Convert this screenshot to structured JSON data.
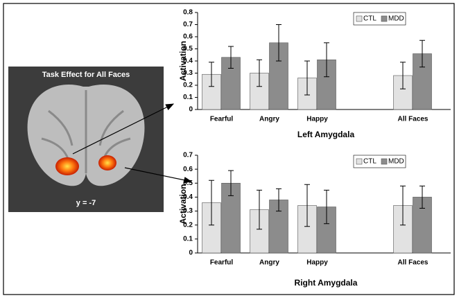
{
  "brain_panel": {
    "title": "Task Effect for All Faces",
    "label": "y =  -7"
  },
  "chart_data": [
    {
      "type": "bar",
      "xlabel": "Left Amygdala",
      "ylabel": "Activation",
      "categories": [
        "Fearful",
        "Angry",
        "Happy",
        null,
        "All Faces"
      ],
      "series": [
        {
          "name": "CTL",
          "color": "#e2e2e2",
          "values": [
            0.29,
            0.3,
            0.26,
            null,
            0.28
          ],
          "errors": [
            0.1,
            0.11,
            0.14,
            null,
            0.11
          ]
        },
        {
          "name": "MDD",
          "color": "#8c8c8c",
          "values": [
            0.43,
            0.55,
            0.41,
            null,
            0.46
          ],
          "errors": [
            0.09,
            0.15,
            0.14,
            null,
            0.11
          ]
        }
      ],
      "ylim": [
        0,
        0.8
      ],
      "yticks": [
        0,
        0.1,
        0.2,
        0.3,
        0.4,
        0.5,
        0.6,
        0.7,
        0.8
      ],
      "legend": "upper right"
    },
    {
      "type": "bar",
      "xlabel": "Right Amygdala",
      "ylabel": "Activation",
      "categories": [
        "Fearful",
        "Angry",
        "Happy",
        null,
        "All Faces"
      ],
      "series": [
        {
          "name": "CTL",
          "color": "#e2e2e2",
          "values": [
            0.36,
            0.31,
            0.34,
            null,
            0.34
          ],
          "errors": [
            0.16,
            0.14,
            0.15,
            null,
            0.14
          ]
        },
        {
          "name": "MDD",
          "color": "#8c8c8c",
          "values": [
            0.5,
            0.38,
            0.33,
            null,
            0.4
          ],
          "errors": [
            0.09,
            0.08,
            0.12,
            null,
            0.08
          ]
        }
      ],
      "ylim": [
        0,
        0.7
      ],
      "yticks": [
        0,
        0.1,
        0.2,
        0.3,
        0.4,
        0.5,
        0.6,
        0.7
      ],
      "legend": "upper right"
    }
  ]
}
